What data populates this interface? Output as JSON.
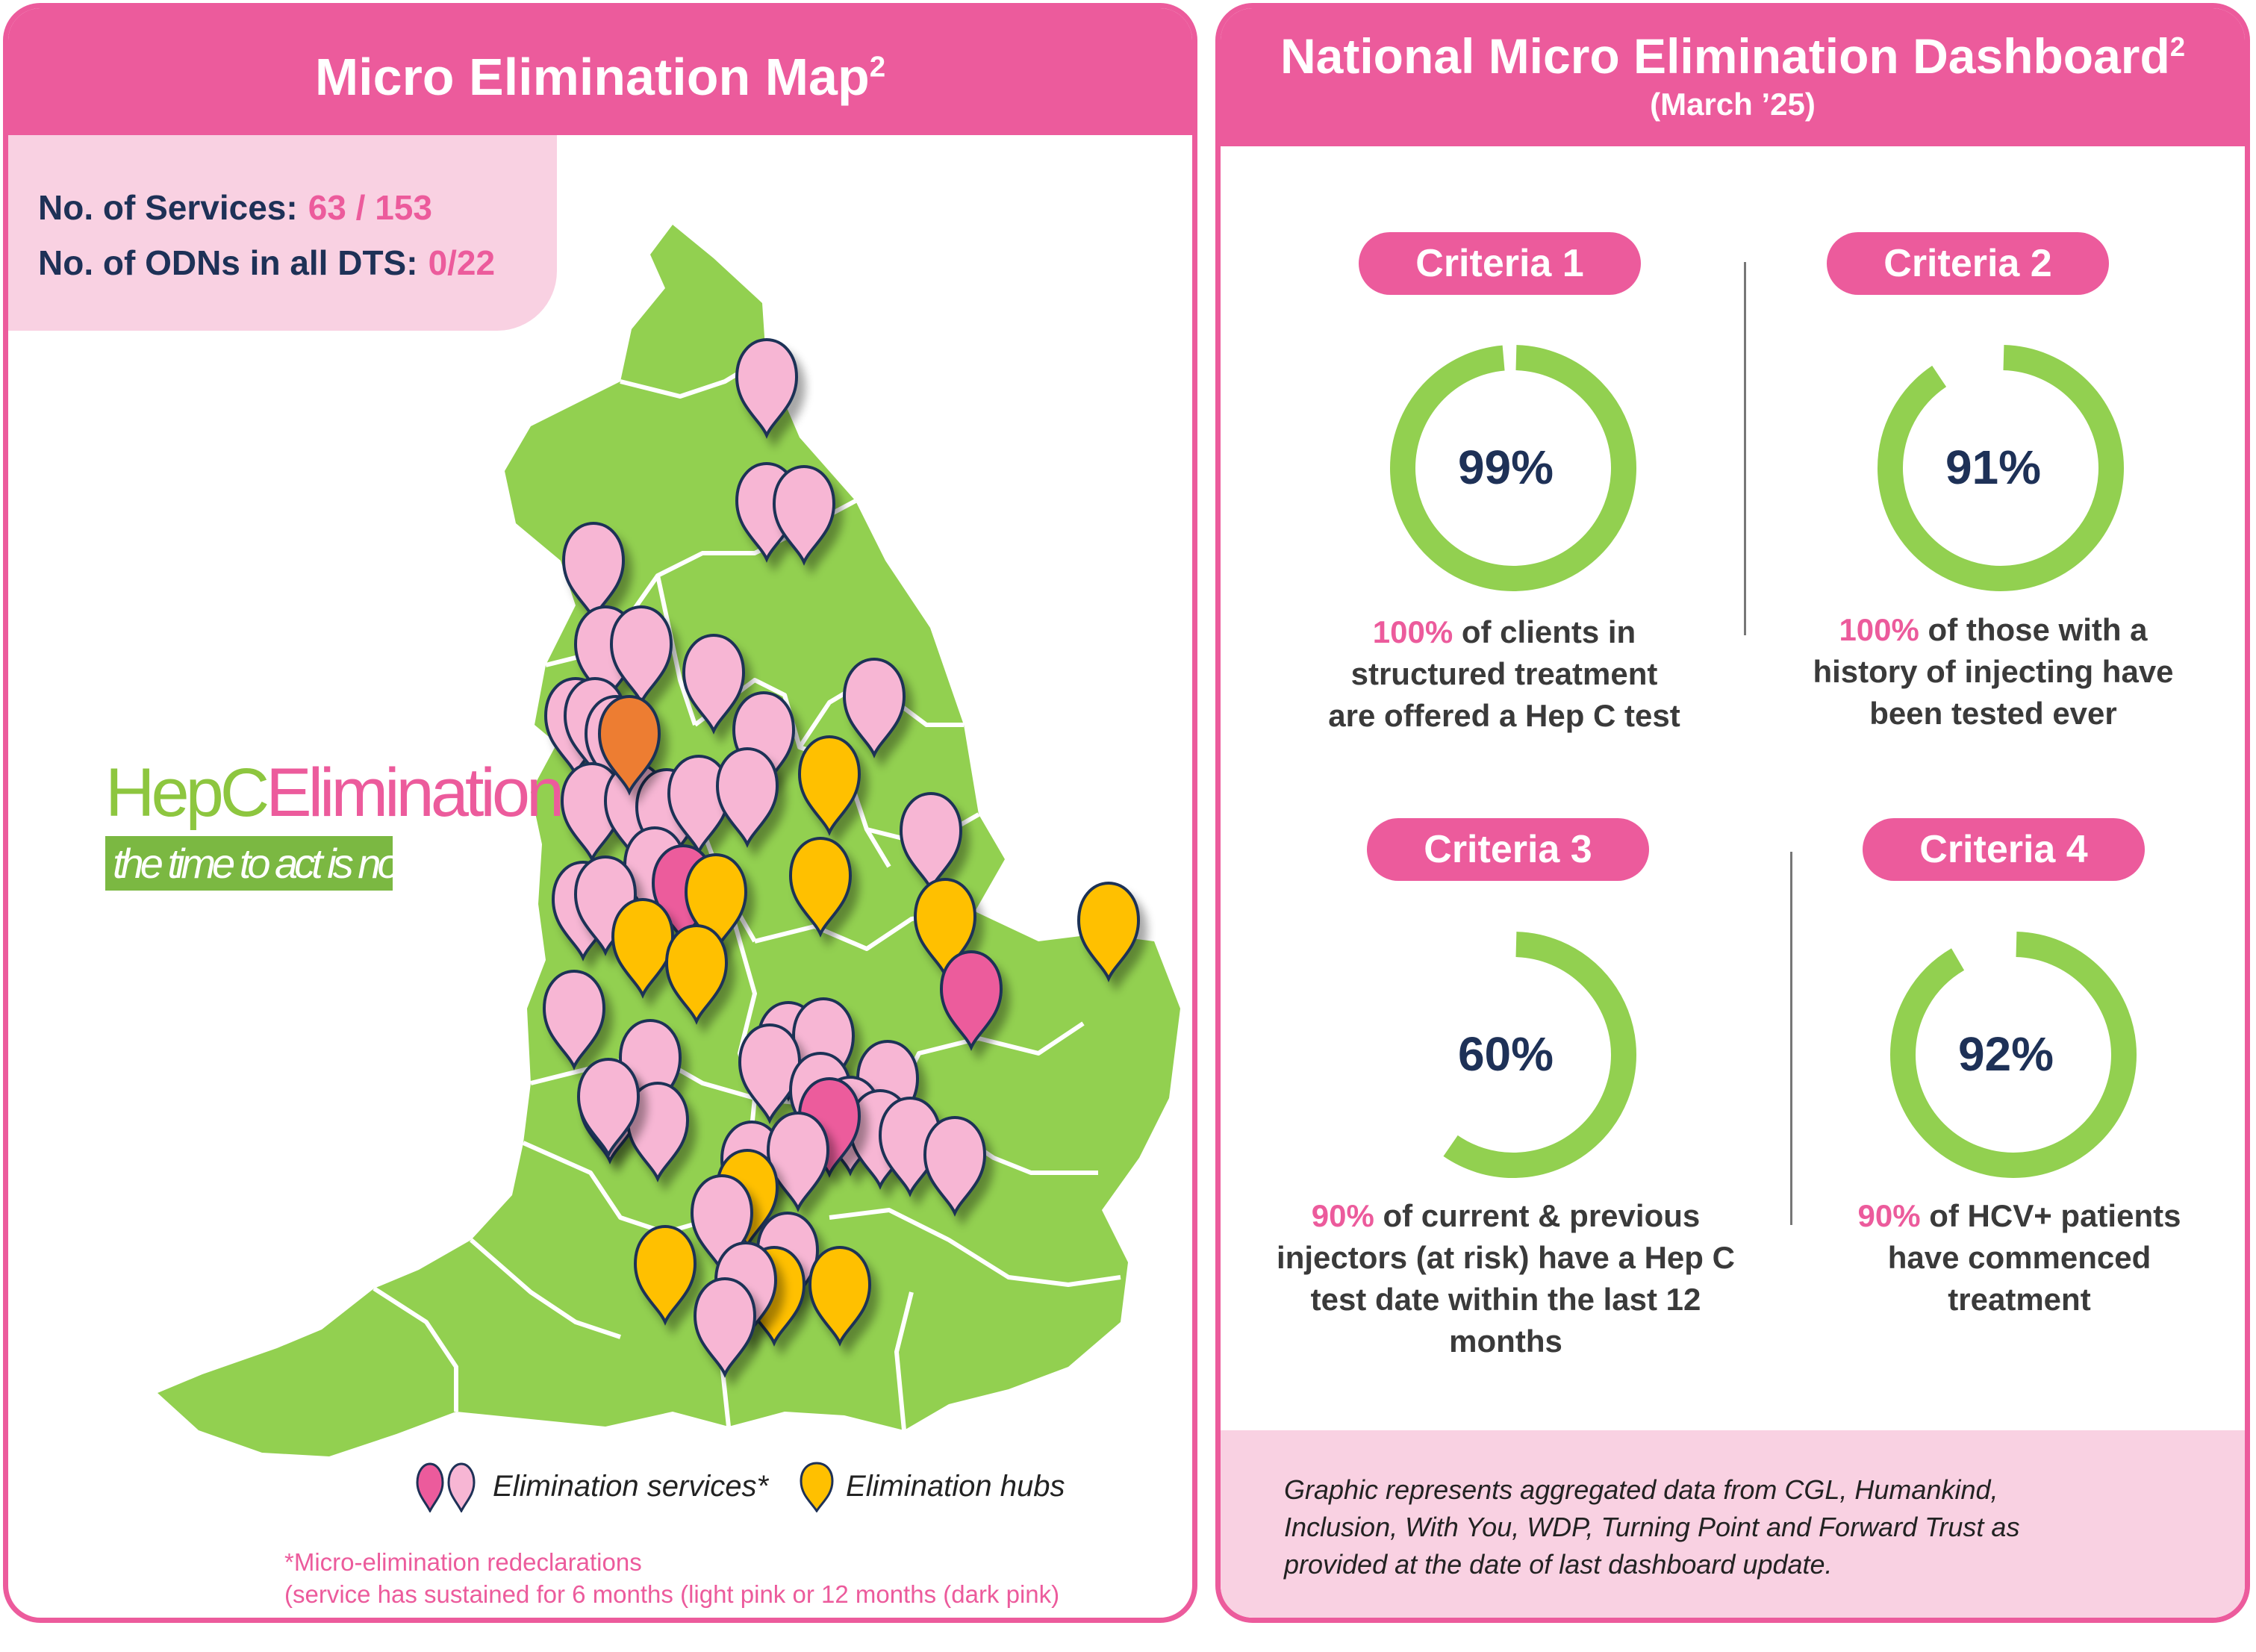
{
  "map_panel": {
    "title": "Micro Elimination Map",
    "title_sup": "2",
    "services_label": "No. of Services:",
    "services_value": "63 / 153",
    "odns_label": "No. of ODNs in all DTS:",
    "odns_value": "0/22",
    "logo_hep": "HepC",
    "logo_elim": "Elimination",
    "logo_tagline": "the time to act is now",
    "legend_services": "Elimination services*",
    "legend_hubs": "Elimination hubs",
    "footnote_line1": "*Micro-elimination redeclarations",
    "footnote_line2": "(service has sustained for 6 months (light pink or 12 months (dark pink)",
    "colors": {
      "land": "#92d050",
      "light_pink_pin": "#f7b6d4",
      "dark_pink_pin": "#ec5b9c",
      "hub_pin": "#ffc000",
      "orange_pin": "#ed7d31",
      "pin_outline": "#1e3157"
    }
  },
  "dashboard": {
    "title": "National Micro Elimination Dashboard",
    "title_sup": "2",
    "subtitle": "(March ’25)",
    "criteria": [
      {
        "label": "Criteria 1",
        "percent": "99%",
        "fraction": 0.99,
        "hl": "100%",
        "text_a": " of clients in",
        "text_b": "structured treatment",
        "text_c": "are offered a Hep C test",
        "text_d": ""
      },
      {
        "label": "Criteria 2",
        "percent": "91%",
        "fraction": 0.91,
        "hl": "100%",
        "text_a": " of those with a",
        "text_b": "history of injecting have",
        "text_c": "been tested ever",
        "text_d": ""
      },
      {
        "label": "Criteria 3",
        "percent": "60%",
        "fraction": 0.6,
        "hl": "90%",
        "text_a": " of current & previous",
        "text_b": "injectors (at risk) have a Hep C",
        "text_c": "test date within the last 12",
        "text_d": "months"
      },
      {
        "label": "Criteria 4",
        "percent": "92%",
        "fraction": 0.92,
        "hl": "90%",
        "text_a": " of HCV+ patients",
        "text_b": "have commenced",
        "text_c": "treatment",
        "text_d": ""
      }
    ],
    "note_line1": "Graphic represents aggregated data from CGL, Humankind,",
    "note_line2": "Inclusion, With You, WDP, Turning Point and Forward Trust as",
    "note_line3": "provided at the date of last dashboard update.",
    "colors": {
      "accent": "#ec5b9c",
      "ring": "#92d050",
      "text_dark": "#1e3157"
    }
  }
}
